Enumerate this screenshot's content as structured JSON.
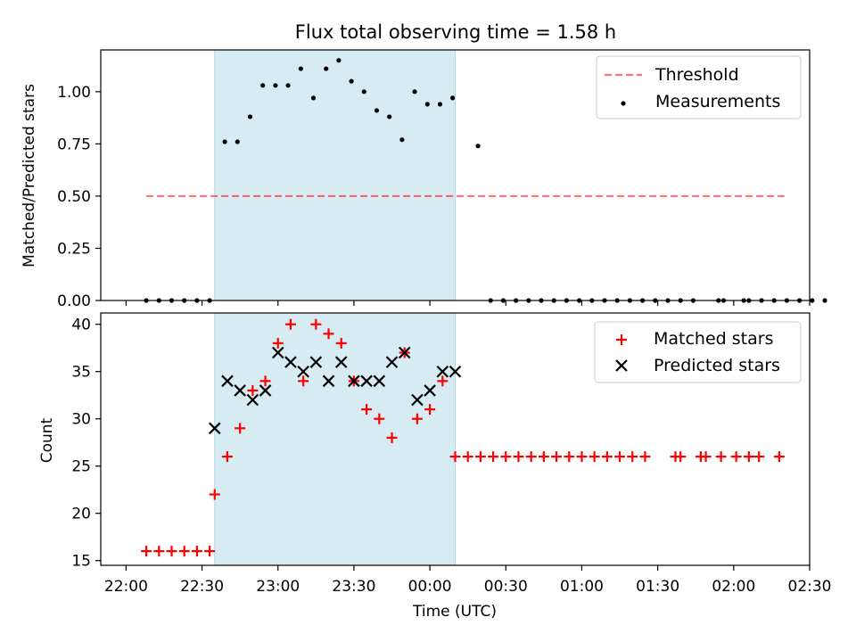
{
  "chart_data": [
    {
      "type": "scatter",
      "title": "Flux total observing time = 1.58 h",
      "ylabel": "Matched/Predicted stars",
      "xlabel": "",
      "ylim": [
        0,
        1.2
      ],
      "yticks": [
        0.0,
        0.25,
        0.5,
        0.75,
        1.0
      ],
      "ytick_labels": [
        "0.00",
        "0.25",
        "0.50",
        "0.75",
        "1.00"
      ],
      "x_unit": "minutes after 22:00 UTC",
      "xlim": [
        -10,
        270
      ],
      "highlight_span": [
        35,
        130
      ],
      "threshold": {
        "name": "Threshold",
        "value": 0.5,
        "x_range": [
          8,
          260
        ]
      },
      "legend_position": "upper right",
      "series": [
        {
          "name": "Measurements",
          "x": [
            8,
            13,
            18,
            23,
            28,
            33,
            39,
            44,
            49,
            54,
            59,
            64,
            69,
            74,
            79,
            84,
            89,
            94,
            99,
            104,
            109,
            114,
            119,
            124,
            129,
            139,
            144,
            149,
            154,
            159,
            164,
            169,
            174,
            179,
            184,
            189,
            194,
            199,
            204,
            209,
            214,
            219,
            224,
            234,
            236,
            244,
            246,
            251,
            256,
            261,
            266,
            271,
            276
          ],
          "y": [
            0,
            0,
            0,
            0,
            0,
            0,
            0.76,
            0.76,
            0.88,
            1.03,
            1.03,
            1.03,
            1.11,
            0.97,
            1.11,
            1.15,
            1.05,
            1.0,
            0.91,
            0.88,
            0.77,
            1.0,
            0.94,
            0.94,
            0.97,
            0.74,
            0,
            0,
            0,
            0,
            0,
            0,
            0,
            0,
            0,
            0,
            0,
            0,
            0,
            0,
            0,
            0,
            0,
            0,
            0,
            0,
            0,
            0,
            0,
            0,
            0,
            0,
            0
          ]
        }
      ]
    },
    {
      "type": "scatter",
      "title": "",
      "xlabel": "Time (UTC)",
      "ylabel": "Count",
      "ylim": [
        14.5,
        41.2
      ],
      "yticks": [
        15,
        20,
        25,
        30,
        35,
        40
      ],
      "x_unit": "minutes after 22:00 UTC",
      "xlim": [
        -10,
        270
      ],
      "xticks": [
        0,
        30,
        60,
        90,
        120,
        150,
        180,
        210,
        240,
        270
      ],
      "xtick_labels": [
        "22:00",
        "22:30",
        "23:00",
        "23:30",
        "00:00",
        "00:30",
        "01:00",
        "01:30",
        "02:00",
        "02:30"
      ],
      "highlight_span": [
        35,
        130
      ],
      "legend_position": "upper right",
      "series": [
        {
          "name": "Matched stars",
          "marker": "plus",
          "color": "#ff0000",
          "x": [
            8,
            13,
            18,
            23,
            28,
            33,
            35,
            40,
            45,
            50,
            55,
            60,
            65,
            70,
            75,
            80,
            85,
            90,
            95,
            100,
            105,
            110,
            115,
            120,
            125,
            130,
            135,
            140,
            145,
            150,
            155,
            160,
            165,
            170,
            175,
            180,
            185,
            190,
            195,
            200,
            205,
            217,
            219,
            227,
            229,
            235,
            241,
            246,
            250,
            258
          ],
          "y": [
            16,
            16,
            16,
            16,
            16,
            16,
            22,
            26,
            29,
            33,
            34,
            38,
            40,
            34,
            40,
            39,
            38,
            34,
            31,
            30,
            28,
            37,
            30,
            31,
            34,
            26,
            26,
            26,
            26,
            26,
            26,
            26,
            26,
            26,
            26,
            26,
            26,
            26,
            26,
            26,
            26,
            26,
            26,
            26,
            26,
            26,
            26,
            26,
            26,
            26
          ]
        },
        {
          "name": "Predicted stars",
          "marker": "x",
          "color": "#000000",
          "x": [
            35,
            40,
            45,
            50,
            55,
            60,
            65,
            70,
            75,
            80,
            85,
            90,
            95,
            100,
            105,
            110,
            115,
            120,
            125,
            130
          ],
          "y": [
            29,
            34,
            33,
            32,
            33,
            37,
            36,
            35,
            36,
            34,
            36,
            34,
            34,
            34,
            36,
            37,
            32,
            33,
            35,
            35
          ]
        }
      ]
    }
  ]
}
